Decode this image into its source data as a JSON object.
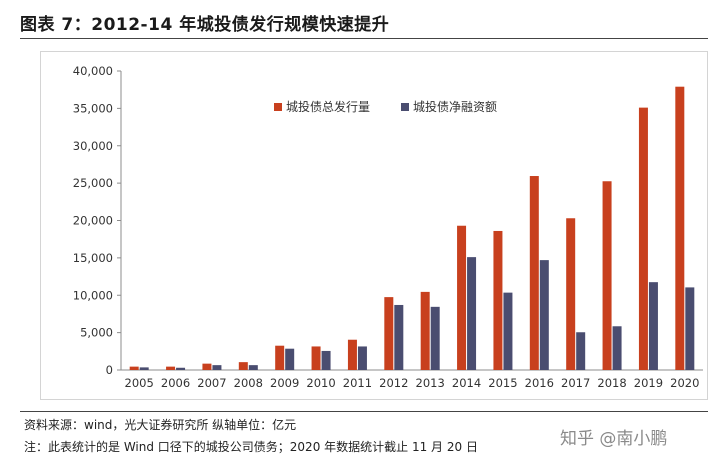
{
  "title": "图表 7：2012-14 年城投债发行规模快速提升",
  "source_note": "资料来源：wind，光大证券研究所   纵轴单位：亿元",
  "footnote": "注：此表统计的是 Wind 口径下的城投公司债务；2020 年数据统计截止 11 月 20 日",
  "watermark": "知乎 @南小鹏",
  "chart_data": {
    "type": "bar",
    "categories": [
      "2005",
      "2006",
      "2007",
      "2008",
      "2009",
      "2010",
      "2011",
      "2012",
      "2013",
      "2014",
      "2015",
      "2016",
      "2017",
      "2018",
      "2019",
      "2020"
    ],
    "series": [
      {
        "name": "城投债总发行量",
        "color": "#c8401e",
        "values": [
          450,
          450,
          850,
          1050,
          3250,
          3150,
          4050,
          9750,
          10450,
          19300,
          18600,
          25950,
          20300,
          25250,
          35100,
          37900
        ]
      },
      {
        "name": "城投债净融资额",
        "color": "#4a4d70",
        "values": [
          350,
          300,
          650,
          650,
          2850,
          2550,
          3150,
          8700,
          8450,
          15100,
          10350,
          14700,
          5050,
          5850,
          11750,
          11050
        ]
      }
    ],
    "ylim": [
      0,
      40000
    ],
    "yticks": [
      "0",
      "5,000",
      "10,000",
      "15,000",
      "20,000",
      "25,000",
      "30,000",
      "35,000",
      "40,000"
    ],
    "ytick_values": [
      0,
      5000,
      10000,
      15000,
      20000,
      25000,
      30000,
      35000,
      40000
    ],
    "legend_position": "top-right",
    "grid": false
  }
}
